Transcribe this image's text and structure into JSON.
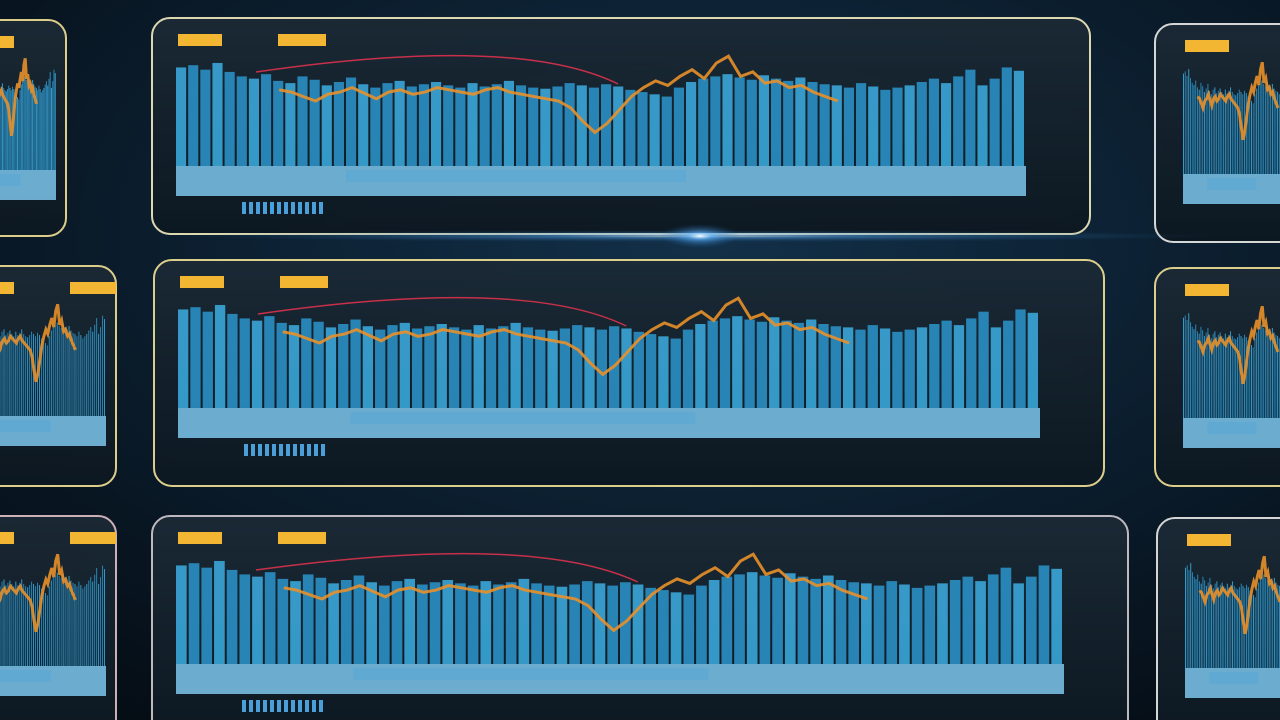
{
  "bars": {
    "values": [
      88,
      90,
      86,
      92,
      84,
      80,
      78,
      82,
      76,
      74,
      80,
      77,
      72,
      75,
      79,
      73,
      70,
      74,
      76,
      71,
      73,
      75,
      72,
      70,
      74,
      71,
      73,
      76,
      72,
      70,
      69,
      71,
      74,
      72,
      70,
      73,
      71,
      68,
      66,
      64,
      62,
      70,
      75,
      78,
      80,
      82,
      79,
      77,
      81,
      78,
      76,
      79,
      75,
      73,
      72,
      70,
      74,
      71,
      68,
      70,
      72,
      75,
      78,
      74,
      80,
      86,
      72,
      78,
      88,
      85
    ]
  },
  "line": {
    "values": [
      null,
      null,
      null,
      null,
      null,
      null,
      null,
      null,
      68,
      66,
      62,
      58,
      64,
      66,
      70,
      65,
      60,
      66,
      68,
      64,
      66,
      70,
      68,
      66,
      64,
      68,
      70,
      66,
      64,
      62,
      60,
      58,
      52,
      40,
      30,
      38,
      50,
      62,
      70,
      76,
      72,
      80,
      86,
      78,
      92,
      98,
      80,
      84,
      74,
      76,
      70,
      72,
      66,
      62,
      58,
      null,
      null,
      null,
      null,
      null,
      null,
      null,
      null,
      null,
      null,
      null,
      null,
      null,
      null,
      null
    ]
  }
}
